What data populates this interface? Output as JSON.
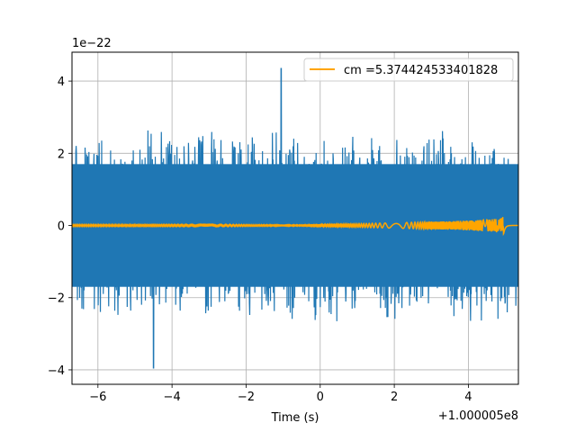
{
  "chart_data": {
    "type": "line",
    "title": "",
    "xlabel": "Time (s)",
    "ylabel": "",
    "xlim": [
      -6.7,
      5.35
    ],
    "ylim": [
      -4.4e-22,
      4.8e-22
    ],
    "x_offset_label": "+1.000005e8",
    "y_scale_label": "1e−22",
    "x_ticks": [
      -6,
      -4,
      -2,
      0,
      2,
      4
    ],
    "x_tick_labels": [
      "−6",
      "−4",
      "−2",
      "0",
      "2",
      "4"
    ],
    "y_ticks": [
      -4e-22,
      -2e-22,
      0,
      2e-22,
      4e-22
    ],
    "y_tick_labels": [
      "−4",
      "−2",
      "0",
      "2",
      "4"
    ],
    "grid": true,
    "legend": {
      "placement": "top-right",
      "entries": [
        "cm =5.374424533401828"
      ]
    },
    "series": [
      {
        "name": "",
        "color": "#1f77b4",
        "kind": "noise",
        "envelope_amplitude": 2.2e-22,
        "peak_max": 4.35e-22,
        "peak_max_at": -1.05,
        "peak_min": -3.95e-22,
        "peak_min_at": -4.5,
        "samples": 1400
      },
      {
        "name": "cm =5.374424533401828",
        "color": "#ffa500",
        "kind": "chirp",
        "merger_time": 4.95,
        "peak_amplitude": 2.5e-23,
        "growth_start": -0.5
      }
    ]
  }
}
